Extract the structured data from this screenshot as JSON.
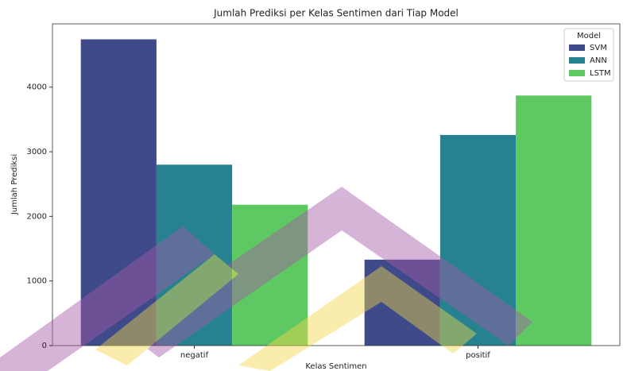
{
  "chart_data": {
    "type": "bar",
    "title": "Jumlah Prediksi per Kelas Sentimen dari Tiap Model",
    "x_label": "Kelas Sentimen",
    "y_label": "Jumlah Prediksi",
    "categories": [
      "negatif",
      "positif"
    ],
    "series": [
      {
        "name": "SVM",
        "color": "#3e4a89",
        "values": [
          4740,
          1330
        ]
      },
      {
        "name": "ANN",
        "color": "#26828e",
        "values": [
          2800,
          3260
        ]
      },
      {
        "name": "LSTM",
        "color": "#5ec962",
        "values": [
          2180,
          3870
        ]
      }
    ],
    "legend_title": "Model",
    "legend": "upper right",
    "ylim": [
      0,
      4980
    ],
    "yticks": [
      0,
      1000,
      2000,
      3000,
      4000
    ]
  }
}
